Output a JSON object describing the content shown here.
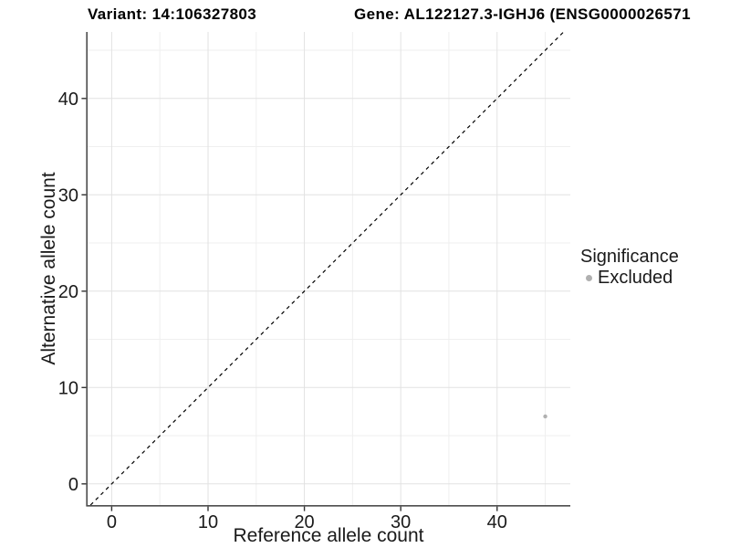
{
  "chart_data": {
    "type": "scatter",
    "title_left": "Variant: 14:106327803",
    "title_right": "Gene: AL122127.3-IGHJ6 (ENSG0000026571",
    "xlabel": "Reference allele count",
    "ylabel": "Alternative allele count",
    "xlim": [
      -2.5,
      47.6
    ],
    "ylim": [
      -2.2,
      46.9
    ],
    "x_major_ticks": [
      0,
      10,
      20,
      30,
      40
    ],
    "x_minor_ticks": [
      5,
      15,
      25,
      35,
      45
    ],
    "y_major_ticks": [
      0,
      10,
      20,
      30,
      40
    ],
    "y_minor_ticks": [
      5,
      15,
      25,
      35,
      45
    ],
    "grid": true,
    "reference_line": {
      "slope": 1,
      "intercept": 0,
      "style": "dashed"
    },
    "points": [
      {
        "x": 45,
        "y": 7,
        "significance": "Excluded"
      }
    ],
    "legend": {
      "title": "Significance",
      "position": "right",
      "items": [
        {
          "label": "Excluded",
          "color": "#b0b0b0"
        }
      ]
    },
    "colors": {
      "point": "#b0b0b0",
      "grid_major": "#e2e2e2",
      "grid_minor": "#efefef",
      "axis_line": "#4d4d4d",
      "tick_mark": "#333333",
      "axis_text": "#1a1a1a",
      "title_text": "#000000",
      "reference_line": "#000000",
      "background": "#ffffff"
    }
  }
}
